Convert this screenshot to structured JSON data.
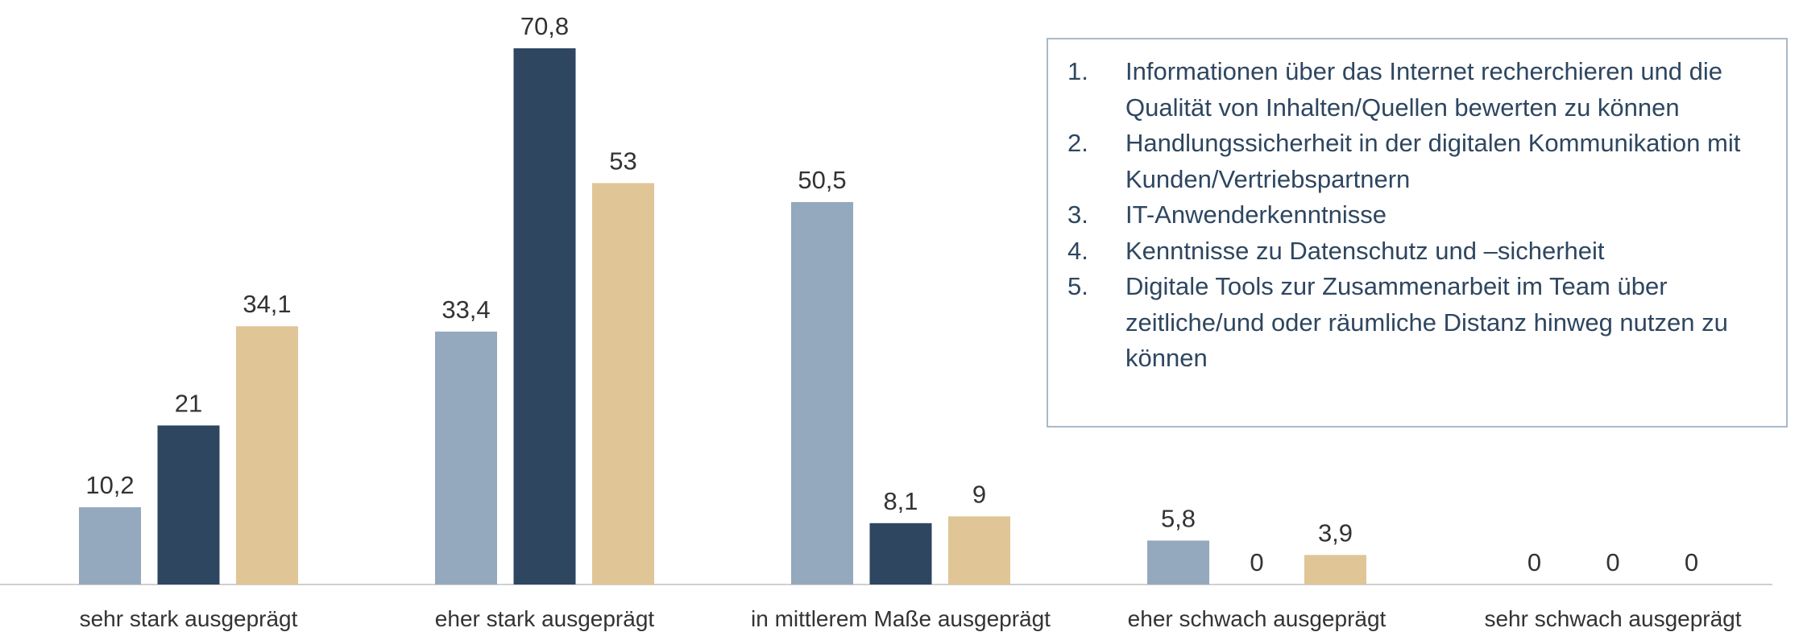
{
  "chart_data": {
    "type": "bar",
    "categories": [
      "sehr stark ausgeprägt",
      "eher stark ausgeprägt",
      "in mittlerem Maße ausgeprägt",
      "eher schwach ausgeprägt",
      "sehr schwach ausgeprägt"
    ],
    "series": [
      {
        "color": "#94a9bd",
        "values": [
          10.2,
          33.4,
          50.5,
          5.8,
          0
        ],
        "value_labels": [
          "10,2",
          "33,4",
          "50,5",
          "5,8",
          "0"
        ]
      },
      {
        "color": "#2e4660",
        "values": [
          21,
          70.8,
          8.1,
          0,
          0
        ],
        "value_labels": [
          "21",
          "70,8",
          "8,1",
          "0",
          "0"
        ]
      },
      {
        "color": "#e0c597",
        "values": [
          34.1,
          53,
          9,
          3.9,
          0
        ],
        "value_labels": [
          "34,1",
          "53",
          "9",
          "3,9",
          "0"
        ]
      }
    ],
    "notes": [
      {
        "number": "1.",
        "text": "Informationen über das Internet recherchieren und die Qualität von Inhalten/Quellen bewerten zu können"
      },
      {
        "number": "2.",
        "text": "Handlungssicherheit in der digitalen Kommunikation mit Kunden/Vertriebspartnern"
      },
      {
        "number": "3.",
        "text": "IT-Anwenderkenntnisse"
      },
      {
        "number": "4.",
        "text": "Kenntnisse zu Datenschutz und –sicherheit"
      },
      {
        "number": "5.",
        "text": "Digitale Tools zur Zusammenarbeit im Team über zeitliche/und oder räumliche Distanz hinweg nutzen zu können"
      }
    ]
  }
}
